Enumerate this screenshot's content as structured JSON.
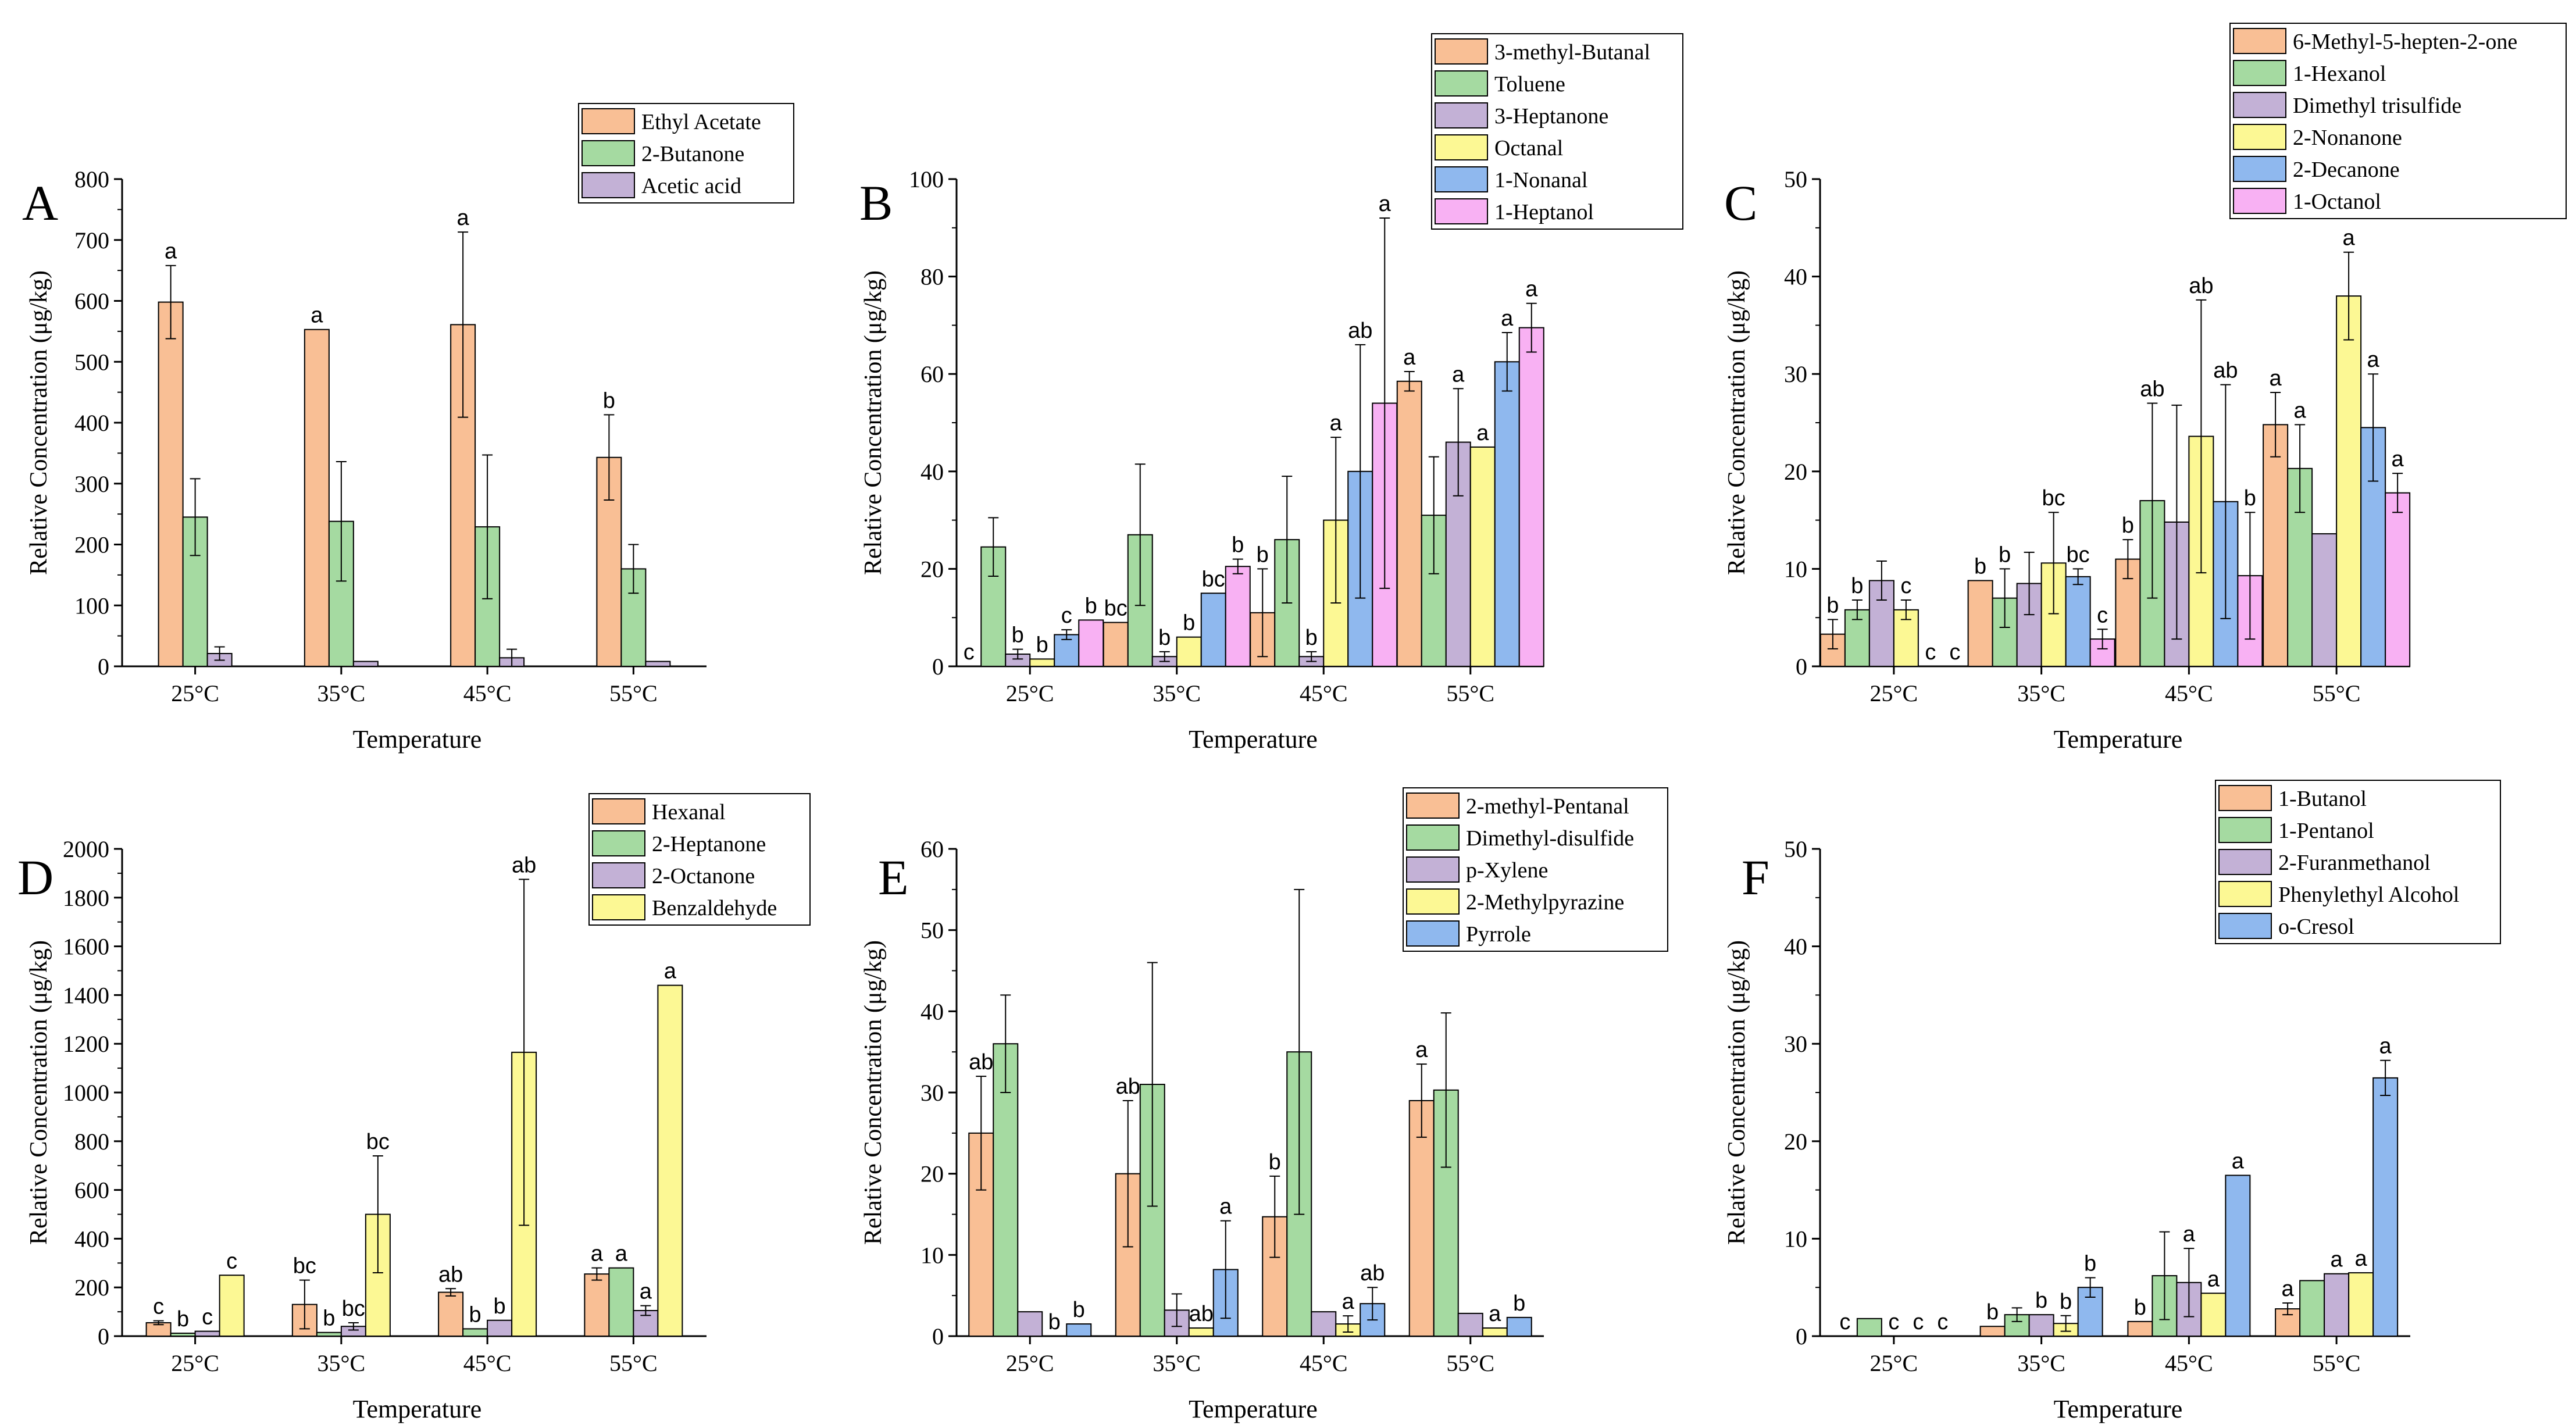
{
  "chart_data": [
    {
      "type": "bar",
      "panel_letter": "A",
      "xlabel": "Temperature",
      "ylabel": "Relative Concentration (μg/kg)",
      "categories": [
        "25°C",
        "35°C",
        "45°C",
        "55°C"
      ],
      "ylim": [
        0,
        800
      ],
      "yticks": [
        0,
        100,
        200,
        300,
        400,
        500,
        600,
        700,
        800
      ],
      "legend_position": "top-right",
      "series": [
        {
          "name": "Ethyl Acetate",
          "color": "#F9BF95",
          "values": [
            598,
            553,
            561,
            343
          ],
          "errors": [
            60,
            0,
            152,
            70
          ],
          "labels": [
            "a",
            "a",
            "a",
            "b"
          ]
        },
        {
          "name": "2-Butanone",
          "color": "#A5DAA1",
          "values": [
            245,
            238,
            229,
            160
          ],
          "errors": [
            63,
            98,
            118,
            40
          ],
          "labels": [
            "",
            "",
            "",
            ""
          ]
        },
        {
          "name": "Acetic acid",
          "color": "#C3B1D6",
          "values": [
            21,
            8,
            14,
            8
          ],
          "errors": [
            11,
            0,
            14,
            0
          ],
          "labels": [
            "",
            "",
            "",
            ""
          ]
        }
      ]
    },
    {
      "type": "bar",
      "panel_letter": "B",
      "xlabel": "Temperature",
      "ylabel": "Relative Concentration (μg/kg)",
      "categories": [
        "25°C",
        "35°C",
        "45°C",
        "55°C"
      ],
      "ylim": [
        0,
        100
      ],
      "yticks": [
        0,
        20,
        40,
        60,
        80,
        100
      ],
      "legend_position": "top-right",
      "series": [
        {
          "name": "3-methyl-Butanal",
          "color": "#F9BF95",
          "values": [
            0,
            9,
            11,
            58.5
          ],
          "errors": [
            0,
            0,
            9,
            2
          ],
          "labels": [
            "c",
            "bc",
            "b",
            "a"
          ]
        },
        {
          "name": "Toluene",
          "color": "#A5DAA1",
          "values": [
            24.5,
            27,
            26,
            31
          ],
          "errors": [
            6,
            14.5,
            13,
            12
          ],
          "labels": [
            "",
            "",
            "",
            ""
          ]
        },
        {
          "name": "3-Heptanone",
          "color": "#C3B1D6",
          "values": [
            2.5,
            2,
            2,
            46
          ],
          "errors": [
            1,
            1,
            1,
            11
          ],
          "labels": [
            "b",
            "b",
            "b",
            "a"
          ]
        },
        {
          "name": "Octanal",
          "color": "#FCF894",
          "values": [
            1.5,
            6,
            30,
            45
          ],
          "errors": [
            0,
            0,
            17,
            0
          ],
          "labels": [
            "b",
            "b",
            "a",
            "a"
          ]
        },
        {
          "name": "1-Nonanal",
          "color": "#8FB8EE",
          "values": [
            6.5,
            15,
            40,
            62.5
          ],
          "errors": [
            1,
            0,
            26,
            6
          ],
          "labels": [
            "c",
            "bc",
            "ab",
            "a"
          ]
        },
        {
          "name": "1-Heptanol",
          "color": "#F8B1F3",
          "values": [
            9.5,
            20.5,
            54,
            69.5
          ],
          "errors": [
            0,
            1.5,
            38,
            5
          ],
          "labels": [
            "b",
            "b",
            "a",
            "a"
          ]
        }
      ]
    },
    {
      "type": "bar",
      "panel_letter": "C",
      "xlabel": "Temperature",
      "ylabel": "Relative Concentration (μg/kg)",
      "categories": [
        "25°C",
        "35°C",
        "45°C",
        "55°C"
      ],
      "ylim": [
        0,
        50
      ],
      "yticks": [
        0,
        10,
        20,
        30,
        40,
        50
      ],
      "legend_position": "top-right",
      "series": [
        {
          "name": "6-Methyl-5-hepten-2-one",
          "color": "#F9BF95",
          "values": [
            3.3,
            8.8,
            11,
            24.8
          ],
          "errors": [
            1.5,
            0,
            2,
            3.3
          ],
          "labels": [
            "b",
            "b",
            "b",
            "a"
          ]
        },
        {
          "name": "1-Hexanol",
          "color": "#A5DAA1",
          "values": [
            5.8,
            7,
            17,
            20.3
          ],
          "errors": [
            1,
            3,
            10,
            4.5
          ],
          "labels": [
            "b",
            "b",
            "ab",
            "a"
          ]
        },
        {
          "name": "Dimethyl trisulfide",
          "color": "#C3B1D6",
          "values": [
            8.8,
            8.5,
            14.8,
            13.6
          ],
          "errors": [
            2,
            3.2,
            12,
            0
          ],
          "labels": [
            "",
            "",
            "",
            ""
          ]
        },
        {
          "name": "2-Nonanone",
          "color": "#FCF894",
          "values": [
            5.8,
            10.6,
            23.6,
            38
          ],
          "errors": [
            1,
            5.2,
            14,
            4.5
          ],
          "labels": [
            "c",
            "bc",
            "ab",
            "a"
          ]
        },
        {
          "name": "2-Decanone",
          "color": "#8FB8EE",
          "values": [
            0,
            9.2,
            16.9,
            24.5
          ],
          "errors": [
            0,
            0.8,
            12,
            5.5
          ],
          "labels": [
            "c",
            "bc",
            "ab",
            "a"
          ]
        },
        {
          "name": "1-Octanol",
          "color": "#F8B1F3",
          "values": [
            0,
            2.8,
            9.3,
            17.8
          ],
          "errors": [
            0,
            1,
            6.5,
            2
          ],
          "labels": [
            "c",
            "c",
            "b",
            "a"
          ]
        }
      ]
    },
    {
      "type": "bar",
      "panel_letter": "D",
      "xlabel": "Temperature",
      "ylabel": "Relative Concentration (μg/kg)",
      "categories": [
        "25°C",
        "35°C",
        "45°C",
        "55°C"
      ],
      "ylim": [
        0,
        2000
      ],
      "yticks": [
        0,
        200,
        400,
        600,
        800,
        1000,
        1200,
        1400,
        1600,
        1800,
        2000
      ],
      "legend_position": "top-right",
      "series": [
        {
          "name": "Hexanal",
          "color": "#F9BF95",
          "values": [
            55,
            130,
            180,
            255
          ],
          "errors": [
            8,
            100,
            15,
            25
          ],
          "labels": [
            "c",
            "bc",
            "ab",
            "a"
          ]
        },
        {
          "name": "2-Heptanone",
          "color": "#A5DAA1",
          "values": [
            12,
            15,
            30,
            280
          ],
          "errors": [
            0,
            0,
            0,
            0
          ],
          "labels": [
            "b",
            "b",
            "b",
            "a"
          ]
        },
        {
          "name": "2-Octanone",
          "color": "#C3B1D6",
          "values": [
            20,
            40,
            65,
            105
          ],
          "errors": [
            0,
            15,
            0,
            20
          ],
          "labels": [
            "c",
            "bc",
            "b",
            "a"
          ]
        },
        {
          "name": "Benzaldehyde",
          "color": "#FCF894",
          "values": [
            250,
            500,
            1165,
            1440
          ],
          "errors": [
            0,
            240,
            710,
            0
          ],
          "labels": [
            "c",
            "bc",
            "ab",
            "a"
          ]
        }
      ]
    },
    {
      "type": "bar",
      "panel_letter": "E",
      "xlabel": "Temperature",
      "ylabel": "Relative Concentration (μg/kg)",
      "categories": [
        "25°C",
        "35°C",
        "45°C",
        "55°C"
      ],
      "ylim": [
        0,
        60
      ],
      "yticks": [
        0,
        10,
        20,
        30,
        40,
        50,
        60
      ],
      "legend_position": "top-right",
      "series": [
        {
          "name": "2-methyl-Pentanal",
          "color": "#F9BF95",
          "values": [
            25,
            20,
            14.7,
            29
          ],
          "errors": [
            7,
            9,
            5,
            4.5
          ],
          "labels": [
            "ab",
            "ab",
            "b",
            "a"
          ]
        },
        {
          "name": "Dimethyl-disulfide",
          "color": "#A5DAA1",
          "values": [
            36,
            31,
            35,
            30.3
          ],
          "errors": [
            6,
            15,
            20,
            9.5
          ],
          "labels": [
            "",
            "",
            "",
            ""
          ]
        },
        {
          "name": "p-Xylene",
          "color": "#C3B1D6",
          "values": [
            3,
            3.2,
            3,
            2.8
          ],
          "errors": [
            0,
            2,
            0,
            0
          ],
          "labels": [
            "",
            "",
            "",
            ""
          ]
        },
        {
          "name": "2-Methylpyrazine",
          "color": "#FCF894",
          "values": [
            0,
            1,
            1.5,
            1
          ],
          "errors": [
            0,
            0,
            1,
            0
          ],
          "labels": [
            "b",
            "ab",
            "a",
            "a"
          ]
        },
        {
          "name": "Pyrrole",
          "color": "#8FB8EE",
          "values": [
            1.5,
            8.2,
            4,
            2.3
          ],
          "errors": [
            0,
            6,
            2,
            0
          ],
          "labels": [
            "b",
            "a",
            "ab",
            "b"
          ]
        }
      ]
    },
    {
      "type": "bar",
      "panel_letter": "F",
      "xlabel": "Temperature",
      "ylabel": "Relative Concentration (μg/kg)",
      "categories": [
        "25°C",
        "35°C",
        "45°C",
        "55°C"
      ],
      "ylim": [
        0,
        50
      ],
      "yticks": [
        0,
        10,
        20,
        30,
        40,
        50
      ],
      "legend_position": "top-right",
      "series": [
        {
          "name": "1-Butanol",
          "color": "#F9BF95",
          "values": [
            0,
            1,
            1.5,
            2.8
          ],
          "errors": [
            0,
            0,
            0,
            0.6
          ],
          "labels": [
            "c",
            "b",
            "b",
            "a"
          ]
        },
        {
          "name": "1-Pentanol",
          "color": "#A5DAA1",
          "values": [
            1.8,
            2.2,
            6.2,
            5.7
          ],
          "errors": [
            0,
            0.7,
            4.5,
            0
          ],
          "labels": [
            "",
            "",
            "",
            ""
          ]
        },
        {
          "name": "2-Furanmethanol",
          "color": "#C3B1D6",
          "values": [
            0,
            2.2,
            5.5,
            6.4
          ],
          "errors": [
            0,
            0,
            3.5,
            0
          ],
          "labels": [
            "c",
            "b",
            "a",
            "a"
          ]
        },
        {
          "name": "Phenylethyl Alcohol",
          "color": "#FCF894",
          "values": [
            0,
            1.3,
            4.4,
            6.5
          ],
          "errors": [
            0,
            0.8,
            0,
            0
          ],
          "labels": [
            "c",
            "b",
            "a",
            "a"
          ]
        },
        {
          "name": "o-Cresol",
          "color": "#8FB8EE",
          "values": [
            0,
            5,
            16.5,
            26.5
          ],
          "errors": [
            0,
            1,
            0,
            1.8
          ],
          "labels": [
            "c",
            "b",
            "a",
            "a"
          ]
        }
      ]
    }
  ]
}
